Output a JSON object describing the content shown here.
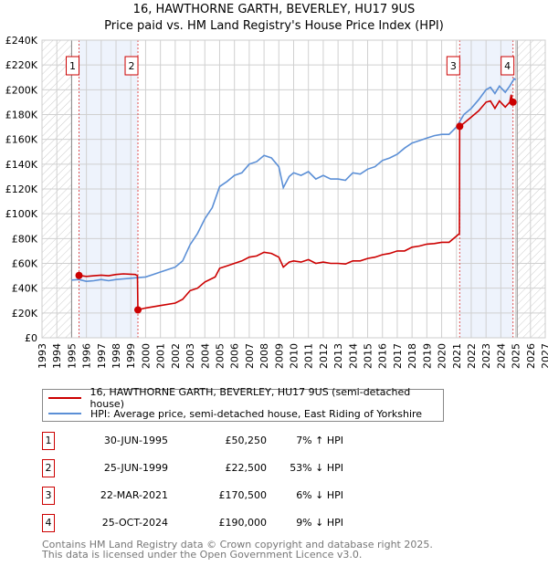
{
  "chart_data": {
    "type": "line",
    "title": "16, HAWTHORNE GARTH, BEVERLEY, HU17 9US",
    "subtitle": "Price paid vs. HM Land Registry's House Price Index (HPI)",
    "xlim": [
      1993,
      2027
    ],
    "ylim": [
      0,
      240000
    ],
    "x_ticks": [
      "1993",
      "1994",
      "1995",
      "1996",
      "1997",
      "1998",
      "1999",
      "2000",
      "2001",
      "2002",
      "2003",
      "2004",
      "2005",
      "2006",
      "2007",
      "2008",
      "2009",
      "2010",
      "2011",
      "2012",
      "2013",
      "2014",
      "2015",
      "2016",
      "2017",
      "2018",
      "2019",
      "2020",
      "2021",
      "2022",
      "2023",
      "2024",
      "2025",
      "2026",
      "2027"
    ],
    "y_ticks": [
      "£0",
      "£20K",
      "£40K",
      "£60K",
      "£80K",
      "£100K",
      "£120K",
      "£140K",
      "£160K",
      "£180K",
      "£200K",
      "£220K",
      "£240K"
    ],
    "grid": true,
    "colors": {
      "price": "#cc0000",
      "hpi": "#5b8fd6",
      "shade": "#eef3fc"
    },
    "series": [
      {
        "name": "16, HAWTHORNE GARTH, BEVERLEY, HU17 9US (semi-detached house)",
        "points": [
          [
            1995.5,
            50.25
          ],
          [
            1996,
            49.5
          ],
          [
            1996.5,
            50
          ],
          [
            1997,
            50.5
          ],
          [
            1997.5,
            50
          ],
          [
            1998,
            51
          ],
          [
            1998.5,
            51.5
          ],
          [
            1999.3,
            51
          ],
          [
            1999.45,
            50
          ],
          [
            1999.48,
            22.5
          ],
          [
            2000,
            24
          ],
          [
            2001,
            26
          ],
          [
            2002,
            28
          ],
          [
            2002.5,
            31
          ],
          [
            2003,
            38
          ],
          [
            2003.5,
            40
          ],
          [
            2004,
            45
          ],
          [
            2004.7,
            49
          ],
          [
            2005,
            56
          ],
          [
            2005.5,
            58
          ],
          [
            2006,
            60
          ],
          [
            2006.5,
            62
          ],
          [
            2007,
            65
          ],
          [
            2007.5,
            66
          ],
          [
            2008,
            69
          ],
          [
            2008.5,
            68
          ],
          [
            2009,
            65
          ],
          [
            2009.3,
            57
          ],
          [
            2009.7,
            61
          ],
          [
            2010,
            62
          ],
          [
            2010.5,
            61
          ],
          [
            2011,
            63
          ],
          [
            2011.5,
            60
          ],
          [
            2012,
            61
          ],
          [
            2012.5,
            60
          ],
          [
            2013,
            60
          ],
          [
            2013.5,
            59.5
          ],
          [
            2014,
            62
          ],
          [
            2014.5,
            62
          ],
          [
            2015,
            64
          ],
          [
            2015.5,
            65
          ],
          [
            2016,
            67
          ],
          [
            2016.5,
            68
          ],
          [
            2017,
            70
          ],
          [
            2017.5,
            70
          ],
          [
            2018,
            73
          ],
          [
            2018.5,
            74
          ],
          [
            2019,
            75.5
          ],
          [
            2019.5,
            76
          ],
          [
            2020,
            77
          ],
          [
            2020.5,
            77
          ],
          [
            2021,
            82
          ],
          [
            2021.2,
            84
          ],
          [
            2021.22,
            170.5
          ],
          [
            2021.5,
            173
          ],
          [
            2022,
            178
          ],
          [
            2022.5,
            183
          ],
          [
            2023,
            190
          ],
          [
            2023.3,
            191
          ],
          [
            2023.6,
            185
          ],
          [
            2023.9,
            191
          ],
          [
            2024.3,
            186
          ],
          [
            2024.6,
            190
          ],
          [
            2024.7,
            196
          ],
          [
            2024.8,
            190.5
          ],
          [
            2024.82,
            190
          ]
        ]
      },
      {
        "name": "HPI: Average price, semi-detached house, East Riding of Yorkshire",
        "points": [
          [
            1995,
            46.5
          ],
          [
            1995.5,
            47
          ],
          [
            1996,
            45.5
          ],
          [
            1996.5,
            46
          ],
          [
            1997,
            47
          ],
          [
            1997.5,
            46
          ],
          [
            1998,
            47
          ],
          [
            1998.5,
            47.5
          ],
          [
            1999,
            48
          ],
          [
            1999.5,
            48.5
          ],
          [
            2000,
            49
          ],
          [
            2000.5,
            51
          ],
          [
            2001,
            53
          ],
          [
            2001.5,
            55
          ],
          [
            2002,
            57
          ],
          [
            2002.5,
            62
          ],
          [
            2003,
            75
          ],
          [
            2003.5,
            84
          ],
          [
            2004,
            96
          ],
          [
            2004.5,
            105
          ],
          [
            2005,
            122
          ],
          [
            2005.5,
            126
          ],
          [
            2006,
            131
          ],
          [
            2006.5,
            133
          ],
          [
            2007,
            140
          ],
          [
            2007.5,
            142
          ],
          [
            2008,
            147
          ],
          [
            2008.5,
            145
          ],
          [
            2009,
            138
          ],
          [
            2009.3,
            121
          ],
          [
            2009.7,
            130
          ],
          [
            2010,
            133
          ],
          [
            2010.5,
            131
          ],
          [
            2011,
            134
          ],
          [
            2011.5,
            128
          ],
          [
            2012,
            131
          ],
          [
            2012.5,
            128
          ],
          [
            2013,
            128
          ],
          [
            2013.5,
            127
          ],
          [
            2014,
            133
          ],
          [
            2014.5,
            132
          ],
          [
            2015,
            136
          ],
          [
            2015.5,
            138
          ],
          [
            2016,
            143
          ],
          [
            2016.5,
            145
          ],
          [
            2017,
            148
          ],
          [
            2017.5,
            153
          ],
          [
            2018,
            157
          ],
          [
            2018.5,
            159
          ],
          [
            2019,
            161
          ],
          [
            2019.5,
            163
          ],
          [
            2020,
            164
          ],
          [
            2020.5,
            164
          ],
          [
            2021,
            170
          ],
          [
            2021.5,
            180
          ],
          [
            2022,
            185
          ],
          [
            2022.5,
            192
          ],
          [
            2023,
            200
          ],
          [
            2023.3,
            202
          ],
          [
            2023.6,
            197
          ],
          [
            2023.9,
            203
          ],
          [
            2024.3,
            198
          ],
          [
            2024.6,
            203
          ],
          [
            2024.9,
            209
          ],
          [
            2025,
            208
          ]
        ]
      }
    ],
    "sales": [
      {
        "label": "1",
        "x": 1995.5,
        "price": 50.25,
        "date": "30-JUN-1995",
        "price_text": "£50,250",
        "hpi_text": "7% ↑ HPI"
      },
      {
        "label": "2",
        "x": 1999.48,
        "price": 22.5,
        "date": "25-JUN-1999",
        "price_text": "£22,500",
        "hpi_text": "53% ↓ HPI"
      },
      {
        "label": "3",
        "x": 2021.22,
        "price": 170.5,
        "date": "22-MAR-2021",
        "price_text": "£170,500",
        "hpi_text": "6% ↓ HPI"
      },
      {
        "label": "4",
        "x": 2024.82,
        "price": 190,
        "date": "25-OCT-2024",
        "price_text": "£190,000",
        "hpi_text": "9% ↓ HPI"
      }
    ],
    "data_range": [
      1995,
      2025.1
    ]
  },
  "footer": {
    "line1": "Contains HM Land Registry data © Crown copyright and database right 2025.",
    "line2": "This data is licensed under the Open Government Licence v3.0."
  }
}
